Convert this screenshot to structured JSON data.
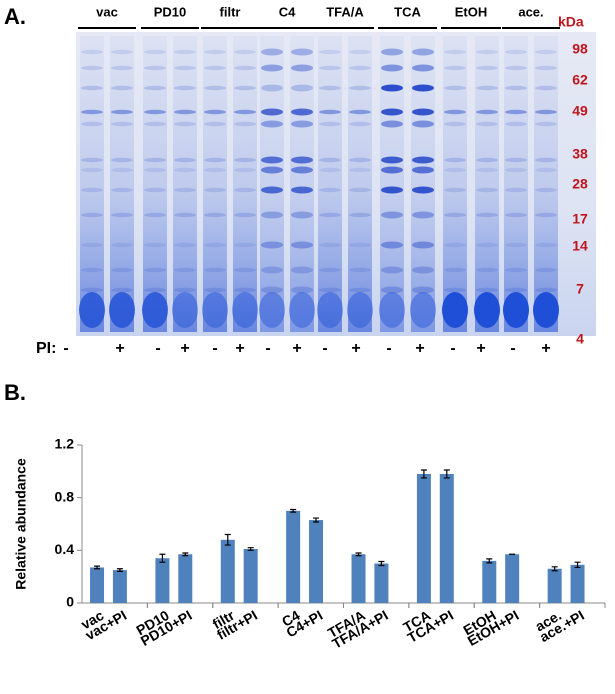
{
  "panel_labels": [
    "A.",
    "B."
  ],
  "gel": {
    "groups": [
      "vac",
      "PD10",
      "filtr",
      "C4",
      "TFA/A",
      "TCA",
      "EtOH",
      "ace."
    ],
    "kda_label": "kDa",
    "kda_markers": [
      98,
      62,
      49,
      38,
      28,
      17,
      14,
      7,
      4
    ],
    "pi_label": "PI:",
    "pi_signs": [
      "-",
      "+",
      "-",
      "+",
      "-",
      "+",
      "-",
      "+",
      "-",
      "+",
      "-",
      "+",
      "-",
      "+",
      "-",
      "+"
    ]
  },
  "chart_data": {
    "type": "bar",
    "y_label": "Relative abundance",
    "categories": [
      "vac",
      "vac+PI",
      "PD10",
      "PD10+PI",
      "filtr",
      "filtr+PI",
      "C4",
      "C4+PI",
      "TFA/A",
      "TFA/A+PI",
      "TCA",
      "TCA+PI",
      "EtOH",
      "EtOH+PI",
      "ace.",
      "ace.+PI"
    ],
    "values": [
      0.27,
      0.25,
      0.34,
      0.37,
      0.48,
      0.41,
      0.7,
      0.63,
      0.37,
      0.3,
      0.98,
      0.98,
      0.32,
      0.37,
      0.26,
      0.29
    ],
    "errors": [
      0.01,
      0.01,
      0.03,
      0.01,
      0.04,
      0.01,
      0.01,
      0.015,
      0.01,
      0.015,
      0.03,
      0.03,
      0.015,
      0,
      0.015,
      0.02
    ],
    "color": "#4f81bd",
    "ylim": [
      0,
      1.2
    ],
    "yticks": [
      0,
      0.4,
      0.8,
      1.2
    ]
  }
}
